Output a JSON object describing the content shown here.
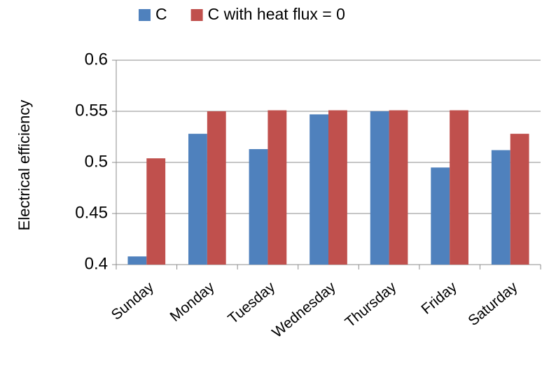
{
  "chart_data": {
    "type": "bar",
    "y_label": "Electrical efficiency",
    "categories": [
      "Sunday",
      "Monday",
      "Tuesday",
      "Wednesday",
      "Thursday",
      "Friday",
      "Saturday"
    ],
    "series": [
      {
        "name": "C",
        "color": "#4f81bd",
        "values": [
          0.408,
          0.528,
          0.513,
          0.547,
          0.55,
          0.495,
          0.512
        ]
      },
      {
        "name": "C with heat flux = 0",
        "color": "#c0504d",
        "values": [
          0.504,
          0.55,
          0.551,
          0.551,
          0.551,
          0.551,
          0.528
        ]
      }
    ],
    "ylim": [
      0.4,
      0.6
    ],
    "yticks": [
      0.4,
      0.45,
      0.5,
      0.55,
      0.6
    ],
    "grid": true,
    "legend": "top"
  }
}
